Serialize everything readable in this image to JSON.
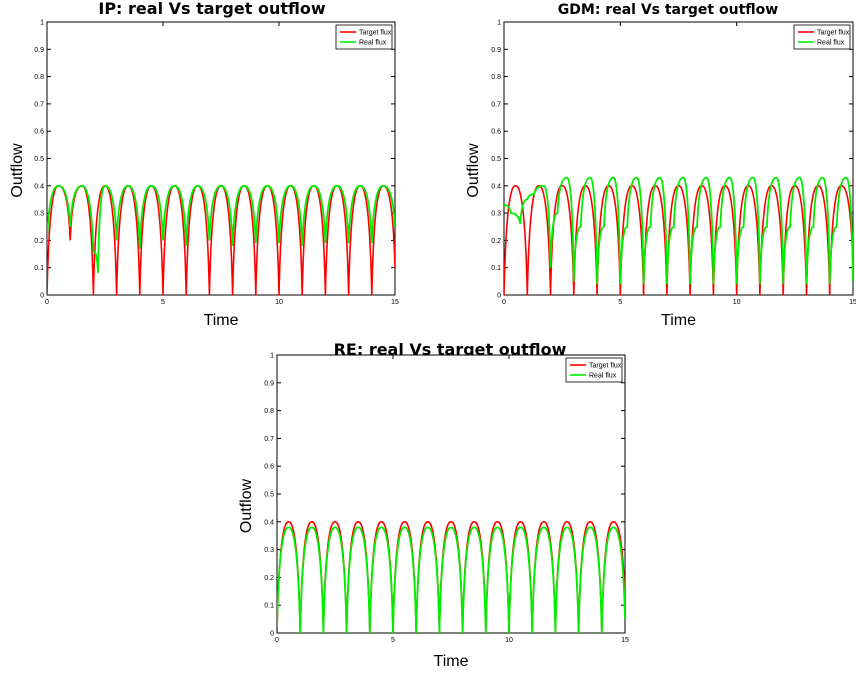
{
  "chart_data": [
    {
      "type": "line",
      "title": "IP: real Vs target outflow",
      "xlabel": "Time",
      "ylabel": "Outflow",
      "xlim": [
        0,
        15
      ],
      "ylim": [
        0,
        1
      ],
      "xticks": [
        "0",
        "5",
        "10",
        "15"
      ],
      "yticks": [
        "0",
        "0.1",
        "0.2",
        "0.3",
        "0.4",
        "0.5",
        "0.6",
        "0.7",
        "0.8",
        "0.9",
        "1"
      ],
      "legend_position": "top-right",
      "grid": false,
      "series": [
        {
          "name": "Target flux",
          "color": "#ff0000",
          "x": [
            0,
            0.5,
            1.0,
            1.5,
            2.0,
            2.5,
            3.0,
            3.5,
            4.0,
            4.5,
            5.0,
            5.5,
            6.0,
            6.5,
            7.0,
            7.5,
            8.0,
            8.5,
            9.0,
            9.5,
            10.0,
            10.5,
            11.0,
            11.5,
            12.0,
            12.5,
            13.0,
            13.5,
            14.0,
            14.5,
            15.0
          ],
          "y": [
            0,
            0.4,
            0.2,
            0.4,
            0.0,
            0.4,
            0.0,
            0.4,
            0.0,
            0.4,
            0.0,
            0.4,
            0.0,
            0.4,
            0.0,
            0.4,
            0.0,
            0.4,
            0.0,
            0.4,
            0.0,
            0.4,
            0.0,
            0.4,
            0.0,
            0.4,
            0.0,
            0.4,
            0.0,
            0.4,
            0.1
          ]
        },
        {
          "name": "Real flux",
          "color": "#00ee00",
          "x": [
            0,
            0.5,
            1.0,
            1.5,
            2.0,
            2.2,
            2.5,
            3.0,
            3.5,
            4.0,
            4.5,
            5.0,
            5.5,
            6.0,
            6.5,
            7.0,
            7.5,
            8.0,
            8.5,
            9.0,
            9.5,
            10.0,
            10.5,
            11.0,
            11.5,
            12.0,
            12.5,
            13.0,
            13.5,
            14.0,
            14.5,
            15.0
          ],
          "y": [
            0.2,
            0.4,
            0.25,
            0.4,
            0.16,
            0.08,
            0.4,
            0.2,
            0.4,
            0.17,
            0.4,
            0.2,
            0.4,
            0.18,
            0.4,
            0.2,
            0.4,
            0.18,
            0.4,
            0.19,
            0.4,
            0.19,
            0.4,
            0.18,
            0.4,
            0.19,
            0.4,
            0.19,
            0.4,
            0.19,
            0.4,
            0.25
          ]
        }
      ]
    },
    {
      "type": "line",
      "title": "GDM: real Vs target outflow",
      "xlabel": "Time",
      "ylabel": "Outflow",
      "xlim": [
        0,
        15
      ],
      "ylim": [
        0,
        1
      ],
      "xticks": [
        "0",
        "5",
        "10",
        "15"
      ],
      "yticks": [
        "0",
        "0.1",
        "0.2",
        "0.3",
        "0.4",
        "0.5",
        "0.6",
        "0.7",
        "0.8",
        "0.9",
        "1"
      ],
      "legend_position": "top-right",
      "grid": false,
      "series": [
        {
          "name": "Target flux",
          "color": "#ff0000",
          "x": [
            0,
            0.5,
            1.0,
            1.5,
            2.0,
            2.5,
            3.0,
            3.5,
            4.0,
            4.5,
            5.0,
            5.5,
            6.0,
            6.5,
            7.0,
            7.5,
            8.0,
            8.5,
            9.0,
            9.5,
            10.0,
            10.5,
            11.0,
            11.5,
            12.0,
            12.5,
            13.0,
            13.5,
            14.0,
            14.5,
            15.0
          ],
          "y": [
            0,
            0.4,
            0.0,
            0.4,
            0.0,
            0.4,
            0.0,
            0.4,
            0.0,
            0.4,
            0.0,
            0.4,
            0.0,
            0.4,
            0.0,
            0.4,
            0.0,
            0.4,
            0.0,
            0.4,
            0.0,
            0.4,
            0.0,
            0.4,
            0.0,
            0.4,
            0.0,
            0.4,
            0.0,
            0.4,
            0.1
          ]
        },
        {
          "name": "Real flux",
          "color": "#00ee00",
          "x": [
            0,
            0.3,
            0.7,
            1.0,
            1.3,
            1.7,
            2.0,
            2.3,
            2.7,
            3.0,
            3.3,
            3.7,
            4.0,
            4.3,
            4.7,
            5.0,
            5.3,
            5.7,
            6.0,
            6.3,
            6.7,
            7.0,
            7.3,
            7.7,
            8.0,
            8.3,
            8.7,
            9.0,
            9.3,
            9.7,
            10.0,
            10.3,
            10.7,
            11.0,
            11.3,
            11.7,
            12.0,
            12.3,
            12.7,
            13.0,
            13.3,
            13.7,
            14.0,
            14.3,
            14.7,
            15.0
          ],
          "y": [
            0.33,
            0.3,
            0.26,
            0.35,
            0.37,
            0.4,
            0.1,
            0.3,
            0.43,
            0.05,
            0.25,
            0.43,
            0.04,
            0.25,
            0.43,
            0.04,
            0.25,
            0.43,
            0.04,
            0.25,
            0.43,
            0.04,
            0.25,
            0.43,
            0.04,
            0.25,
            0.43,
            0.04,
            0.25,
            0.43,
            0.04,
            0.25,
            0.43,
            0.04,
            0.25,
            0.43,
            0.04,
            0.25,
            0.43,
            0.04,
            0.25,
            0.43,
            0.04,
            0.25,
            0.43,
            0.05
          ]
        }
      ]
    },
    {
      "type": "line",
      "title": "RE: real Vs target outflow",
      "xlabel": "Time",
      "ylabel": "Outflow",
      "xlim": [
        0,
        15
      ],
      "ylim": [
        0,
        1
      ],
      "xticks": [
        "0",
        "5",
        "10",
        "15"
      ],
      "yticks": [
        "0",
        "0.1",
        "0.2",
        "0.3",
        "0.4",
        "0.5",
        "0.6",
        "0.7",
        "0.8",
        "0.9",
        "1"
      ],
      "legend_position": "top-right",
      "grid": false,
      "series": [
        {
          "name": "Target flux",
          "color": "#ff0000",
          "x": [
            0,
            0.5,
            1.0,
            1.5,
            2.0,
            2.5,
            3.0,
            3.5,
            4.0,
            4.5,
            5.0,
            5.5,
            6.0,
            6.5,
            7.0,
            7.5,
            8.0,
            8.5,
            9.0,
            9.5,
            10.0,
            10.5,
            11.0,
            11.5,
            12.0,
            12.5,
            13.0,
            13.5,
            14.0,
            14.5,
            15.0
          ],
          "y": [
            0,
            0.4,
            0.0,
            0.4,
            0.0,
            0.4,
            0.0,
            0.4,
            0.0,
            0.4,
            0.0,
            0.4,
            0.0,
            0.4,
            0.0,
            0.4,
            0.0,
            0.4,
            0.0,
            0.4,
            0.0,
            0.4,
            0.0,
            0.4,
            0.0,
            0.4,
            0.0,
            0.4,
            0.0,
            0.4,
            0.1
          ]
        },
        {
          "name": "Real flux",
          "color": "#00ee00",
          "x": [
            0,
            0.5,
            1.0,
            1.5,
            2.0,
            2.5,
            3.0,
            3.5,
            4.0,
            4.5,
            5.0,
            5.5,
            6.0,
            6.5,
            7.0,
            7.5,
            8.0,
            8.5,
            9.0,
            9.5,
            10.0,
            10.5,
            11.0,
            11.5,
            12.0,
            12.5,
            13.0,
            13.5,
            14.0,
            14.5,
            15.0
          ],
          "y": [
            0.02,
            0.38,
            0.0,
            0.38,
            0.0,
            0.38,
            0.0,
            0.38,
            0.0,
            0.38,
            0.0,
            0.38,
            0.0,
            0.38,
            0.0,
            0.38,
            0.0,
            0.38,
            0.0,
            0.38,
            0.0,
            0.38,
            0.0,
            0.38,
            0.0,
            0.38,
            0.0,
            0.38,
            0.0,
            0.38,
            0.05
          ]
        }
      ]
    }
  ]
}
